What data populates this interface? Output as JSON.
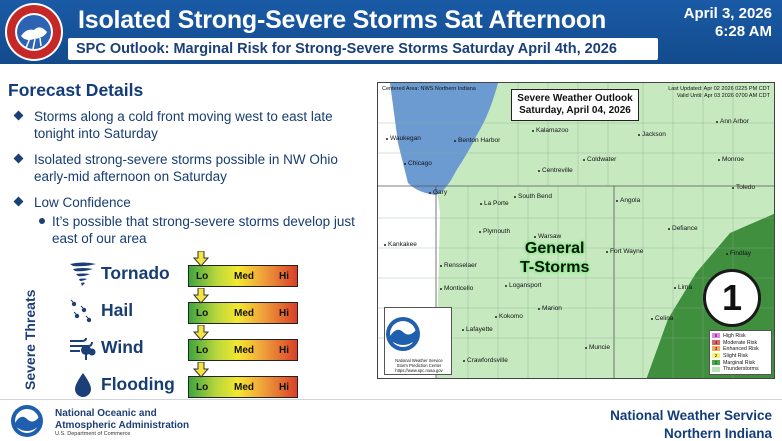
{
  "header": {
    "title": "Isolated Strong-Severe Storms Sat Afternoon",
    "subtitle": "SPC Outlook: Marginal Risk for Strong-Severe Storms Saturday April 4th, 2026",
    "date": "April 3, 2026",
    "time": "6:28 AM",
    "logo_text": "NATIONAL WEATHER SERVICE"
  },
  "forecast": {
    "title": "Forecast Details",
    "bullets": [
      "Storms along a cold front moving west to east late tonight into Saturday",
      "Isolated strong-severe storms possible in NW Ohio early-mid afternoon on Saturday",
      "Low Confidence"
    ],
    "sub_bullet": "It’s possible that strong-severe storms develop just east of our area"
  },
  "threats": {
    "axis_label": "Severe Threats",
    "scale_labels": {
      "lo": "Lo",
      "med": "Med",
      "hi": "Hi"
    },
    "items": [
      {
        "label": "Tornado",
        "icon": "tornado-icon",
        "level": "Lo"
      },
      {
        "label": "Hail",
        "icon": "hail-icon",
        "level": "Lo"
      },
      {
        "label": "Wind",
        "icon": "wind-icon",
        "level": "Lo"
      },
      {
        "label": "Flooding",
        "icon": "water-drop-icon",
        "level": "Lo"
      }
    ]
  },
  "map": {
    "header_left": "Centered Area: NWS Northern Indiana",
    "header_right_1": "Last Updated: Apr 02 2026 0225 PM CDT",
    "header_right_2": "Valid Until: Apr 03 2026 0700 AM CDT",
    "outlook_title": "Severe Weather Outlook",
    "outlook_date": "Saturday, April 04, 2026",
    "general_label_1": "General",
    "general_label_2": "T-Storms",
    "risk_number": "1",
    "noaa_caption_1": "National Weather Service",
    "noaa_caption_2": "Storm Prediction Center",
    "noaa_caption_3": "https://www.spc.noaa.gov",
    "cities": {
      "waukegan": "Waukegan",
      "benton_harbor": "Benton Harbor",
      "kalamazoo": "Kalamazoo",
      "jackson": "Jackson",
      "ann_arbor": "Ann Arbor",
      "chicago": "Chicago",
      "coldwater": "Coldwater",
      "monroe": "Monroe",
      "centreville": "Centreville",
      "toledo": "Toledo",
      "gary": "Gary",
      "la_porte": "La Porte",
      "south_bend": "South Bend",
      "angola": "Angola",
      "defiance": "Defiance",
      "plymouth": "Plymouth",
      "kankakee": "Kankakee",
      "warsaw": "Warsaw",
      "fort_wayne": "Fort Wayne",
      "findlay": "Findlay",
      "rensselaer": "Rensselaer",
      "lima": "Lima",
      "monticello": "Monticello",
      "logansport": "Logansport",
      "marion": "Marion",
      "celina": "Celina",
      "kokomo": "Kokomo",
      "lafayette": "Lafayette",
      "muncie": "Muncie",
      "crawfordsville": "Crawfordsville"
    },
    "legend": [
      {
        "num": "5",
        "label": "High Risk",
        "color": "#e586e6"
      },
      {
        "num": "4",
        "label": "Moderate Risk",
        "color": "#e06666"
      },
      {
        "num": "3",
        "label": "Enhanced Risk",
        "color": "#f6a95a"
      },
      {
        "num": "2",
        "label": "Slight Risk",
        "color": "#f6f36e"
      },
      {
        "num": "1",
        "label": "Marginal Risk",
        "color": "#4aa84a"
      },
      {
        "num": "",
        "label": "Thunderstorms",
        "color": "#b8e4b5"
      }
    ]
  },
  "footer": {
    "org_line1": "National Oceanic and",
    "org_line2": "Atmospheric Administration",
    "org_line3": "U.S. Department of Commerce",
    "nws_line1": "National Weather Service",
    "nws_line2": "Northern Indiana"
  },
  "colors": {
    "header_blue": "#1a5ba6",
    "text_navy": "#173d72",
    "marginal_green": "#3f8f3f",
    "tstorm_green": "#c7e9c0",
    "lake_blue": "#6c9bd1"
  }
}
